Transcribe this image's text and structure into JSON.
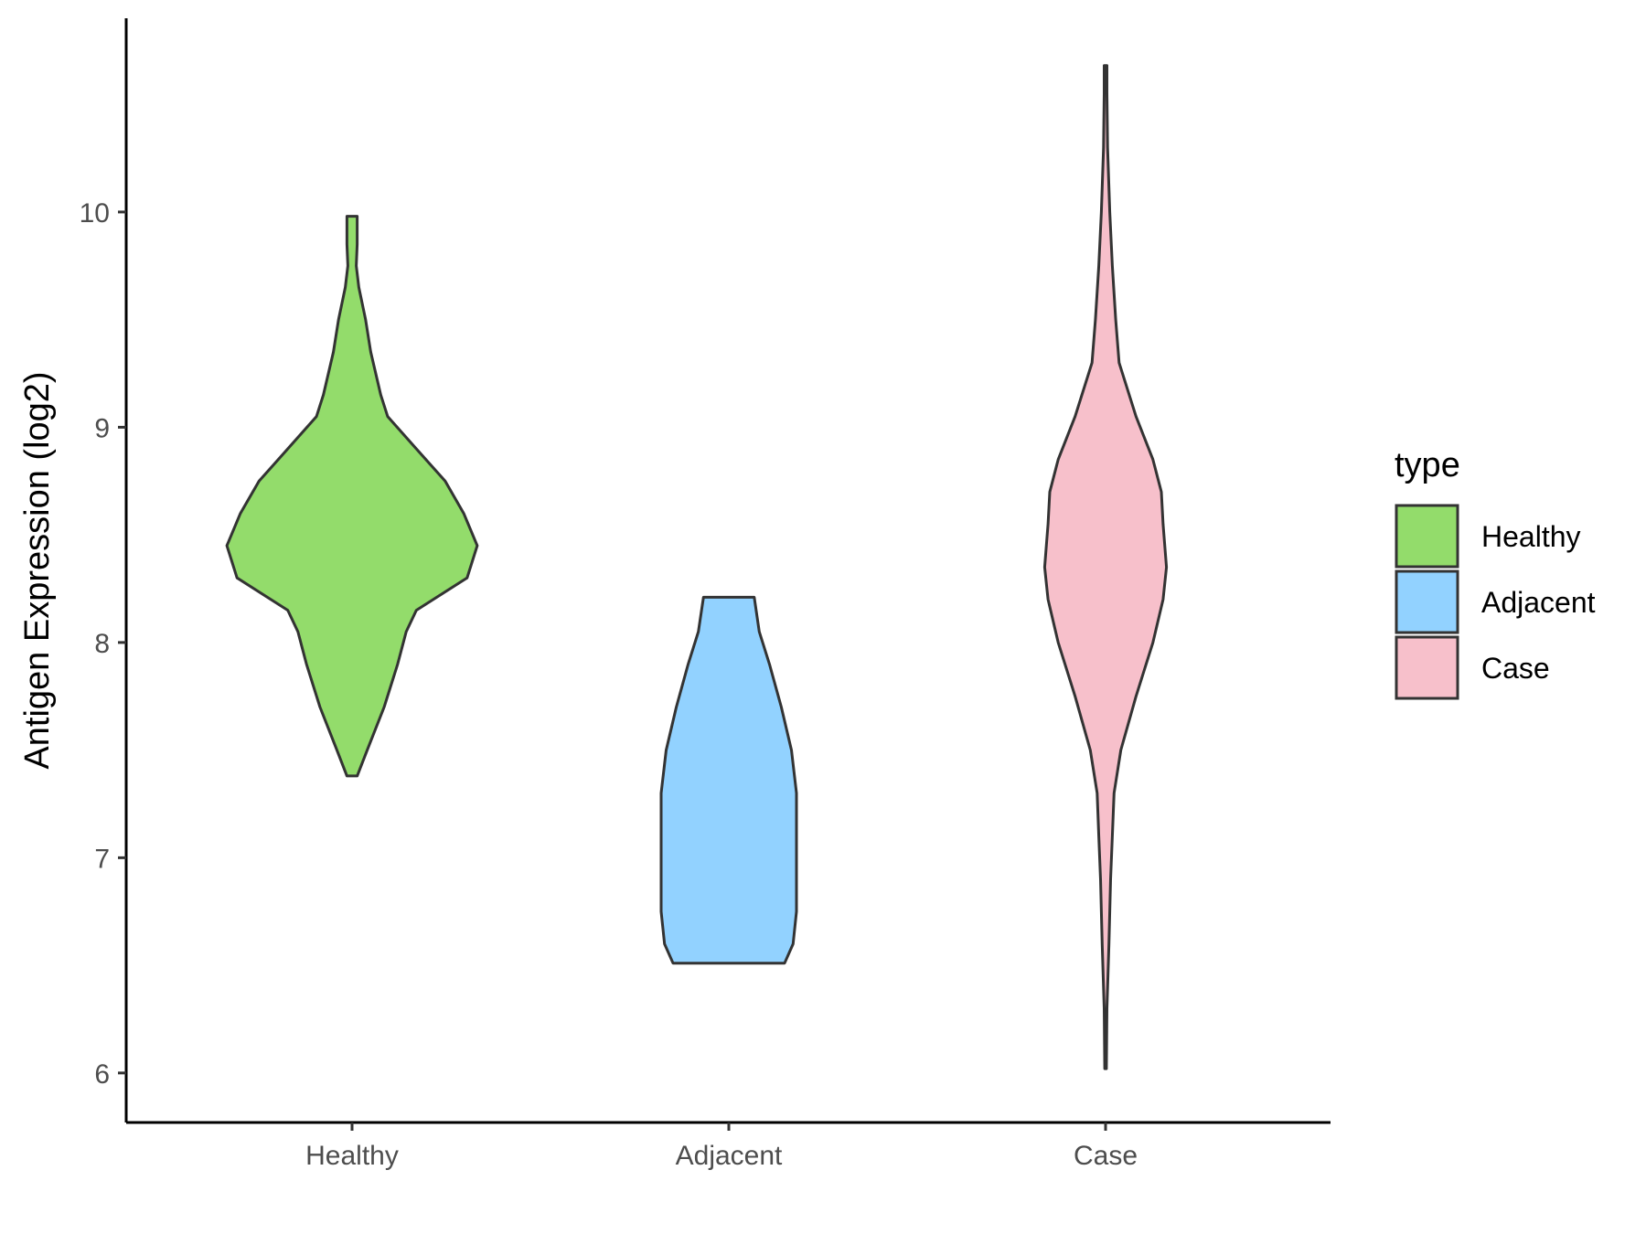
{
  "chart_data": {
    "type": "violin",
    "ylabel": "Antigen Expression (log2)",
    "xlabel": "",
    "ylim": [
      5.77,
      10.9
    ],
    "y_ticks": [
      6,
      7,
      8,
      9,
      10
    ],
    "categories": [
      "Healthy",
      "Adjacent",
      "Case"
    ],
    "legend": {
      "title": "type",
      "position": "right"
    },
    "series": [
      {
        "name": "Healthy",
        "color": "#93dc6b",
        "min": 7.38,
        "max": 9.98,
        "density_profile": [
          [
            7.38,
            0.03
          ],
          [
            7.5,
            0.09
          ],
          [
            7.7,
            0.19
          ],
          [
            7.9,
            0.27
          ],
          [
            8.05,
            0.32
          ],
          [
            8.15,
            0.38
          ],
          [
            8.3,
            0.68
          ],
          [
            8.45,
            0.74
          ],
          [
            8.6,
            0.66
          ],
          [
            8.75,
            0.55
          ],
          [
            8.9,
            0.38
          ],
          [
            9.05,
            0.21
          ],
          [
            9.15,
            0.17
          ],
          [
            9.35,
            0.11
          ],
          [
            9.5,
            0.08
          ],
          [
            9.65,
            0.04
          ],
          [
            9.75,
            0.025
          ],
          [
            9.85,
            0.03
          ],
          [
            9.98,
            0.03
          ]
        ]
      },
      {
        "name": "Adjacent",
        "color": "#92d2ff",
        "min": 6.51,
        "max": 8.21,
        "density_profile": [
          [
            6.51,
            0.33
          ],
          [
            6.6,
            0.38
          ],
          [
            6.75,
            0.4
          ],
          [
            7.0,
            0.4
          ],
          [
            7.3,
            0.4
          ],
          [
            7.5,
            0.37
          ],
          [
            7.7,
            0.31
          ],
          [
            7.9,
            0.24
          ],
          [
            8.05,
            0.18
          ],
          [
            8.21,
            0.15
          ]
        ]
      },
      {
        "name": "Case",
        "color": "#f7c0cb",
        "min": 6.02,
        "max": 10.68,
        "density_profile": [
          [
            6.02,
            0.005
          ],
          [
            6.3,
            0.008
          ],
          [
            6.6,
            0.02
          ],
          [
            6.9,
            0.03
          ],
          [
            7.1,
            0.04
          ],
          [
            7.3,
            0.05
          ],
          [
            7.5,
            0.09
          ],
          [
            7.75,
            0.18
          ],
          [
            8.0,
            0.28
          ],
          [
            8.2,
            0.34
          ],
          [
            8.35,
            0.36
          ],
          [
            8.55,
            0.34
          ],
          [
            8.7,
            0.33
          ],
          [
            8.85,
            0.28
          ],
          [
            9.05,
            0.18
          ],
          [
            9.3,
            0.08
          ],
          [
            9.5,
            0.06
          ],
          [
            9.75,
            0.04
          ],
          [
            10.0,
            0.025
          ],
          [
            10.3,
            0.012
          ],
          [
            10.55,
            0.008
          ],
          [
            10.68,
            0.008
          ]
        ]
      }
    ]
  }
}
